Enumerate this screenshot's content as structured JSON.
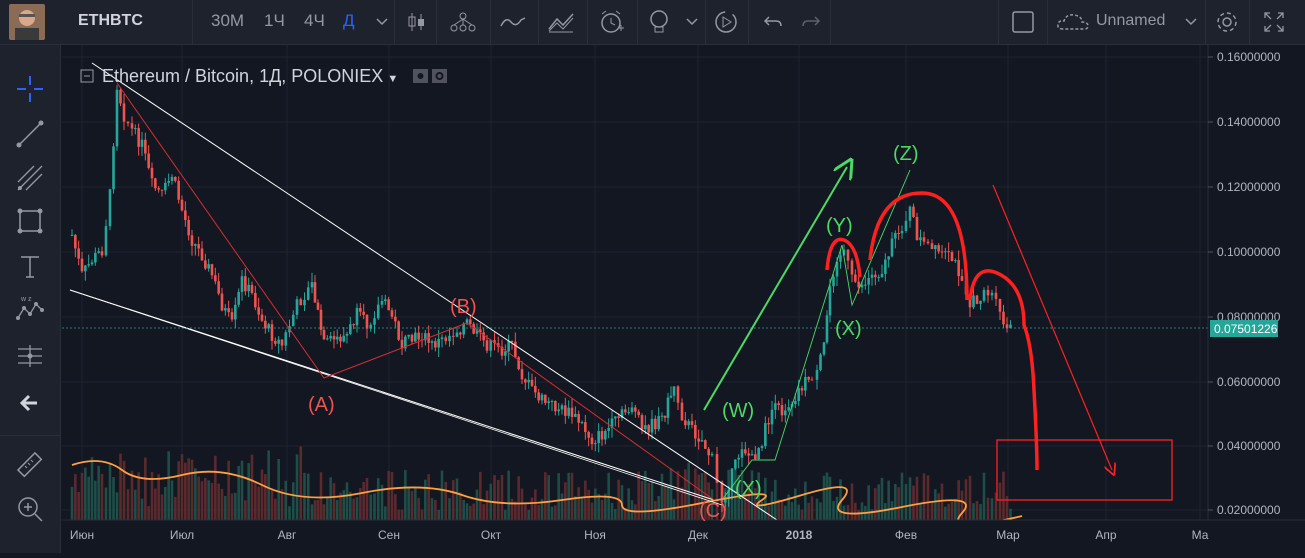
{
  "header": {
    "symbol": "ETHBTC",
    "timeframes": [
      "30М",
      "1Ч",
      "4Ч",
      "Д"
    ],
    "active_timeframe": "Д",
    "layout_name": "Unnamed"
  },
  "legend": {
    "title": "Ethereum / Bitcoin, 1Д, POLONIEX"
  },
  "price_axis": {
    "ticks": [
      "0.16000000",
      "0.14000000",
      "0.12000000",
      "0.10000000",
      "0.08000000",
      "0.06000000",
      "0.04000000",
      "0.02000000"
    ],
    "current_price": "0.07501226"
  },
  "time_axis": {
    "ticks": [
      "Июн",
      "Июл",
      "Авг",
      "Сен",
      "Окт",
      "Ноя",
      "Дек",
      "2018",
      "Фев",
      "Мар",
      "Апр",
      "Ма"
    ]
  },
  "annotations": {
    "A": "(A)",
    "B": "(B)",
    "C": "(C)",
    "W": "(W)",
    "X1": "(X)",
    "Y": "(Y)",
    "X2": "(X)",
    "Z": "(Z)"
  },
  "colors": {
    "background": "#131722",
    "up": "#26a69a",
    "down": "#ef5350",
    "annotation_red": "#ff2020",
    "annotation_green": "#4cd964",
    "price_tag": "#26a69a"
  },
  "icons": {
    "left_tools": [
      "crosshair-icon",
      "trendline-icon",
      "pitchfork-icon",
      "rectangle-icon",
      "text-icon",
      "pattern-icon",
      "measure-icon",
      "back-arrow-icon",
      "ruler-icon",
      "zoom-icon"
    ],
    "top_tools": [
      "candles-icon",
      "indicators-icon",
      "compare-icon",
      "bars-style-icon",
      "alert-icon",
      "idea-icon",
      "replay-icon",
      "undo-icon",
      "redo-icon",
      "fullscreen-icon",
      "settings-icon",
      "cloud-icon"
    ]
  }
}
